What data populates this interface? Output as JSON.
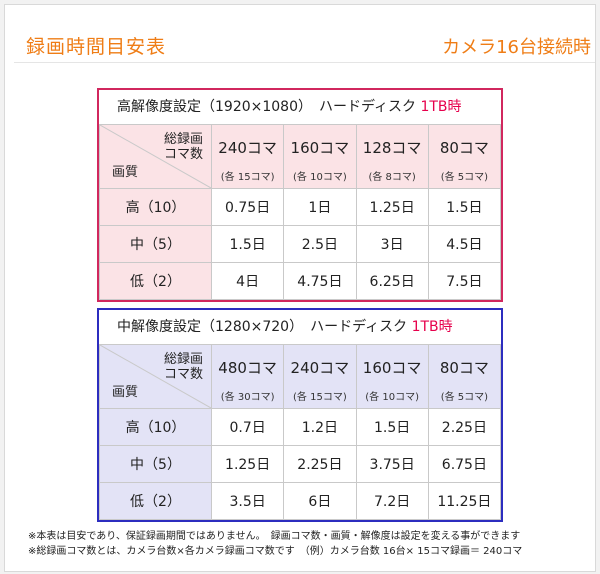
{
  "header": {
    "title": "録画時間目安表",
    "subtitle": "カメラ16台接続時"
  },
  "tables": [
    {
      "caption": "高解像度設定（1920×1080）　ハードディスク",
      "caption_em": "1TB時",
      "corner_top_1": "総録画",
      "corner_top_2": "コマ数",
      "corner_bottom": "画質",
      "columns": [
        {
          "main": "240コマ",
          "sub": "(各 15コマ)"
        },
        {
          "main": "160コマ",
          "sub": "(各 10コマ)"
        },
        {
          "main": "128コマ",
          "sub": "(各 8コマ)"
        },
        {
          "main": "80コマ",
          "sub": "(各 5コマ)"
        }
      ],
      "rows": [
        {
          "label": "高（10）",
          "values": [
            "0.75日",
            "1日",
            "1.25日",
            "1.5日"
          ]
        },
        {
          "label": "中（5）",
          "values": [
            "1.5日",
            "2.5日",
            "3日",
            "4.5日"
          ]
        },
        {
          "label": "低（2）",
          "values": [
            "4日",
            "4.75日",
            "6.25日",
            "7.5日"
          ]
        }
      ]
    },
    {
      "caption": "中解像度設定（1280×720）　ハードディスク",
      "caption_em": "1TB時",
      "corner_top_1": "総録画",
      "corner_top_2": "コマ数",
      "corner_bottom": "画質",
      "columns": [
        {
          "main": "480コマ",
          "sub": "(各 30コマ)"
        },
        {
          "main": "240コマ",
          "sub": "(各 15コマ)"
        },
        {
          "main": "160コマ",
          "sub": "(各 10コマ)"
        },
        {
          "main": "80コマ",
          "sub": "(各 5コマ)"
        }
      ],
      "rows": [
        {
          "label": "高（10）",
          "values": [
            "0.7日",
            "1.2日",
            "1.5日",
            "2.25日"
          ]
        },
        {
          "label": "中（5）",
          "values": [
            "1.25日",
            "2.25日",
            "3.75日",
            "6.75日"
          ]
        },
        {
          "label": "低（2）",
          "values": [
            "3.5日",
            "6日",
            "7.2日",
            "11.25日"
          ]
        }
      ]
    }
  ],
  "notes": {
    "line1": "※本表は目安であり、保証録画期間ではありません。　録画コマ数・画質・解像度は設定を変える事ができます",
    "line2": "※総録画コマ数とは、カメラ台数×各カメラ録画コマ数です　（例）カメラ台数 16台× 15コマ録画＝ 240コマ"
  },
  "colors": {
    "accent": "#ef7d16",
    "table1_border": "#d1275e",
    "table2_border": "#2c2dbf",
    "highlight": "#e6004c"
  }
}
